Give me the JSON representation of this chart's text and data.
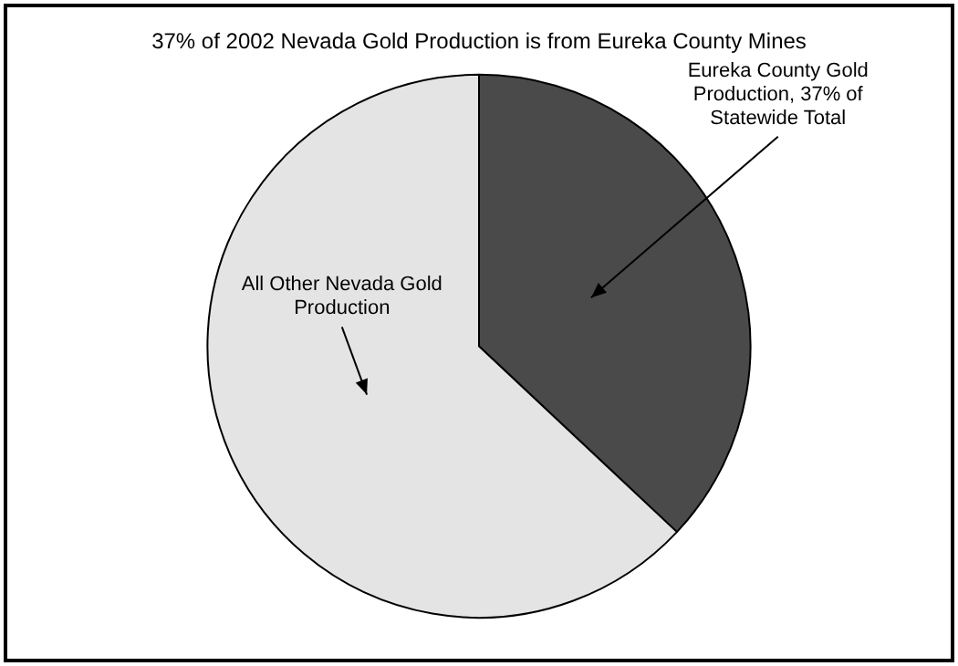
{
  "chart_data": {
    "type": "pie",
    "title": "37% of 2002 Nevada Gold Production is from Eureka County Mines",
    "categories": [
      "Eureka County Gold Production, 37% of Statewide Total",
      "All Other Nevada Gold Production"
    ],
    "values": [
      37,
      63
    ],
    "colors": [
      "#4a4a4a",
      "#e4e4e4"
    ],
    "legend": false
  }
}
